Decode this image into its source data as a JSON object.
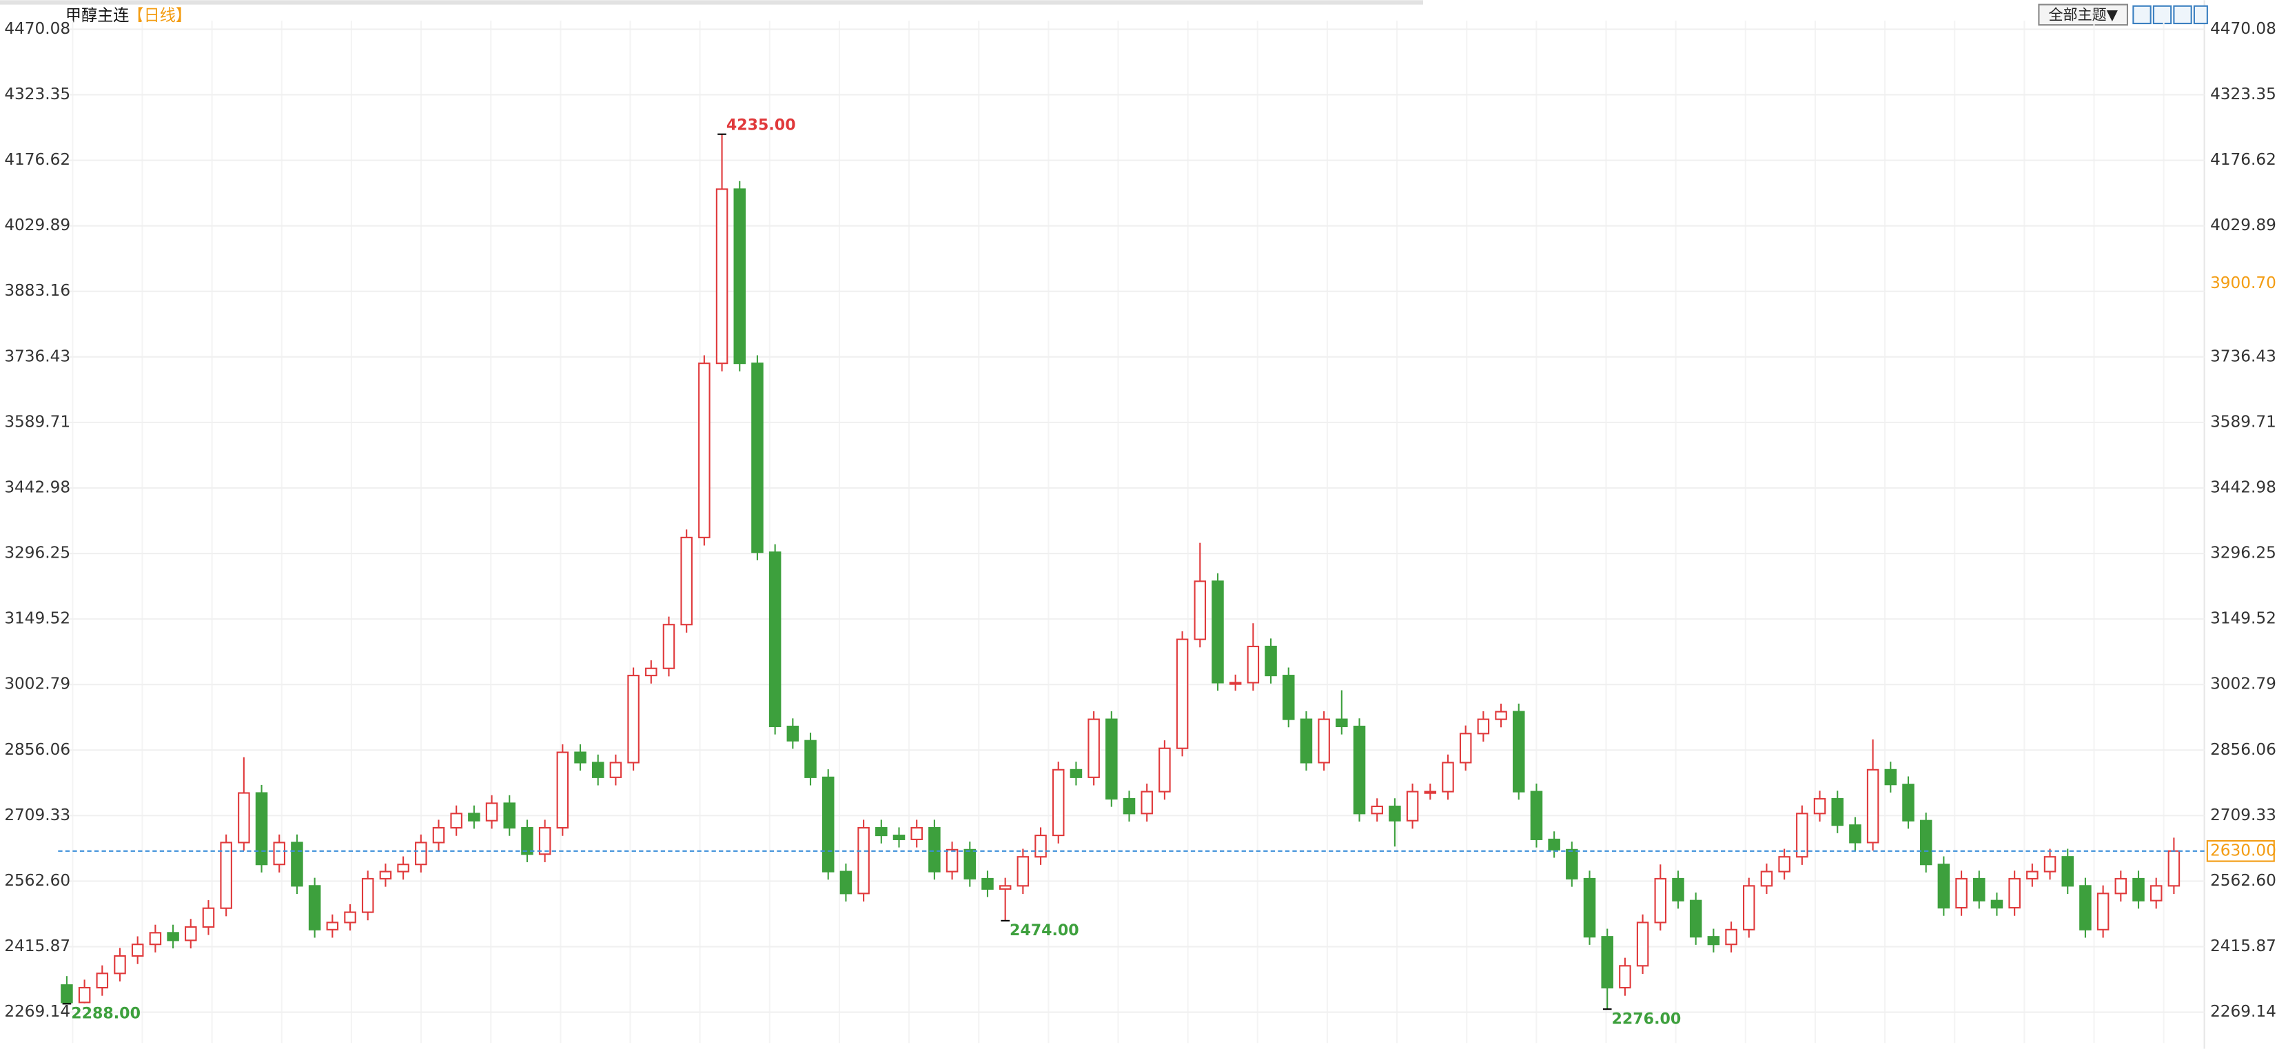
{
  "chart_data": {
    "type": "candlestick",
    "title": "甲醇主连",
    "period": "【日线】",
    "toolbar": {
      "theme_button": "全部主题▼"
    },
    "up_color": "#e0393b",
    "down_color": "#3da03d",
    "grid": true,
    "ylim": [
      2210,
      4535
    ],
    "yticks": [
      4470.08,
      4323.35,
      4176.62,
      4029.89,
      3883.16,
      3736.43,
      3589.71,
      3442.98,
      3296.25,
      3149.52,
      3002.79,
      2856.06,
      2709.33,
      {
        "value": 2562.6,
        "label": "2562.60"
      },
      2415.87,
      2269.14
    ],
    "open": [
      2330,
      2291,
      2324,
      2356,
      2395,
      2421,
      2447,
      2430,
      2460,
      2502,
      2649,
      2760,
      2600,
      2649,
      2552,
      2454,
      2470,
      2493,
      2568,
      2584,
      2600,
      2649,
      2682,
      2714,
      2698,
      2737,
      2682,
      2623,
      2682,
      2851,
      2828,
      2795,
      2828,
      3023,
      3039,
      3137,
      3332,
      3722,
      4112,
      3722,
      3299,
      2909,
      2877,
      2795,
      2584,
      2535,
      2682,
      2665,
      2656,
      2682,
      2584,
      2633,
      2568,
      2545,
      2552,
      2617,
      2665,
      2812,
      2795,
      2925,
      2747,
      2714,
      2763,
      2860,
      3104,
      3234,
      3007,
      3007,
      3088,
      3023,
      2925,
      2828,
      2925,
      2909,
      2714,
      2730,
      2698,
      2763,
      2763,
      2828,
      2893,
      2925,
      2942,
      2763,
      2656,
      2633,
      2568,
      2438,
      2324,
      2373,
      2470,
      2568,
      2519,
      2438,
      2421,
      2454,
      2552,
      2584,
      2617,
      2714,
      2747,
      2688,
      2649,
      2812,
      2779,
      2698,
      2600,
      2503,
      2568,
      2519,
      2503,
      2568,
      2584,
      2617,
      2552,
      2454,
      2535,
      2568,
      2519,
      2552
    ],
    "high": [
      2350,
      2342,
      2374,
      2413,
      2439,
      2465,
      2465,
      2478,
      2520,
      2667,
      2840,
      2778,
      2667,
      2667,
      2570,
      2488,
      2511,
      2586,
      2602,
      2618,
      2667,
      2700,
      2732,
      2732,
      2755,
      2755,
      2700,
      2700,
      2869,
      2869,
      2846,
      2846,
      3041,
      3057,
      3155,
      3350,
      3740,
      4235,
      4130,
      3740,
      3317,
      2927,
      2895,
      2813,
      2602,
      2700,
      2700,
      2683,
      2700,
      2700,
      2651,
      2651,
      2586,
      2570,
      2635,
      2683,
      2830,
      2830,
      2943,
      2943,
      2765,
      2781,
      2878,
      3122,
      3320,
      3252,
      3025,
      3140,
      3106,
      3041,
      2943,
      2943,
      2990,
      2927,
      2748,
      2748,
      2781,
      2781,
      2846,
      2911,
      2943,
      2960,
      2960,
      2781,
      2674,
      2651,
      2586,
      2456,
      2391,
      2488,
      2600,
      2586,
      2537,
      2456,
      2472,
      2570,
      2602,
      2635,
      2732,
      2765,
      2765,
      2706,
      2880,
      2830,
      2797,
      2716,
      2618,
      2586,
      2586,
      2537,
      2586,
      2602,
      2635,
      2635,
      2570,
      2553,
      2586,
      2586,
      2570,
      2660
    ],
    "low": [
      2288,
      2289,
      2306,
      2338,
      2377,
      2403,
      2412,
      2412,
      2442,
      2484,
      2631,
      2582,
      2582,
      2534,
      2436,
      2436,
      2452,
      2475,
      2550,
      2566,
      2582,
      2631,
      2664,
      2680,
      2680,
      2664,
      2605,
      2605,
      2664,
      2810,
      2777,
      2777,
      2810,
      3005,
      3021,
      3119,
      3314,
      3704,
      3704,
      3281,
      2891,
      2859,
      2777,
      2566,
      2517,
      2517,
      2647,
      2638,
      2638,
      2566,
      2566,
      2550,
      2527,
      2474,
      2534,
      2599,
      2647,
      2777,
      2777,
      2729,
      2696,
      2696,
      2745,
      2842,
      3086,
      2989,
      2989,
      2989,
      3005,
      2907,
      2810,
      2810,
      2891,
      2696,
      2696,
      2640,
      2680,
      2745,
      2745,
      2810,
      2875,
      2907,
      2745,
      2638,
      2615,
      2550,
      2420,
      2276,
      2306,
      2355,
      2452,
      2501,
      2420,
      2403,
      2403,
      2436,
      2534,
      2566,
      2599,
      2696,
      2670,
      2631,
      2631,
      2761,
      2680,
      2582,
      2485,
      2485,
      2501,
      2485,
      2485,
      2550,
      2566,
      2534,
      2436,
      2436,
      2517,
      2501,
      2501,
      2534
    ],
    "close": [
      2291,
      2324,
      2356,
      2395,
      2421,
      2447,
      2430,
      2460,
      2502,
      2649,
      2760,
      2600,
      2649,
      2552,
      2454,
      2470,
      2493,
      2568,
      2584,
      2600,
      2649,
      2682,
      2714,
      2698,
      2737,
      2682,
      2623,
      2682,
      2851,
      2828,
      2795,
      2828,
      3023,
      3039,
      3137,
      3332,
      3722,
      4112,
      3722,
      3299,
      2909,
      2877,
      2795,
      2584,
      2535,
      2682,
      2665,
      2656,
      2682,
      2584,
      2633,
      2568,
      2545,
      2552,
      2617,
      2665,
      2812,
      2795,
      2925,
      2747,
      2714,
      2763,
      2860,
      3104,
      3234,
      3007,
      3007,
      3088,
      3023,
      2925,
      2828,
      2925,
      2909,
      2714,
      2730,
      2698,
      2763,
      2763,
      2828,
      2893,
      2925,
      2942,
      2763,
      2656,
      2633,
      2568,
      2438,
      2324,
      2373,
      2470,
      2568,
      2519,
      2438,
      2421,
      2454,
      2552,
      2584,
      2617,
      2714,
      2747,
      2688,
      2649,
      2812,
      2779,
      2698,
      2600,
      2503,
      2568,
      2519,
      2503,
      2568,
      2584,
      2617,
      2552,
      2454,
      2535,
      2568,
      2519,
      2552,
      2630
    ],
    "annotations": [
      {
        "value": 4235,
        "label": "4235.00",
        "kind": "high"
      },
      {
        "value": 2288,
        "label": "2288.00",
        "kind": "low"
      },
      {
        "value": 2474,
        "label": "2474.00",
        "kind": "low"
      },
      {
        "value": 2276,
        "label": "2276.00",
        "kind": "low"
      }
    ],
    "marker": {
      "value": 3900.7,
      "label": "3900.70",
      "color": "#f39c12"
    },
    "last_price": {
      "value": 2630,
      "label": "2630.00",
      "color": "#f39c12",
      "line_color": "#3b8fd9"
    }
  }
}
